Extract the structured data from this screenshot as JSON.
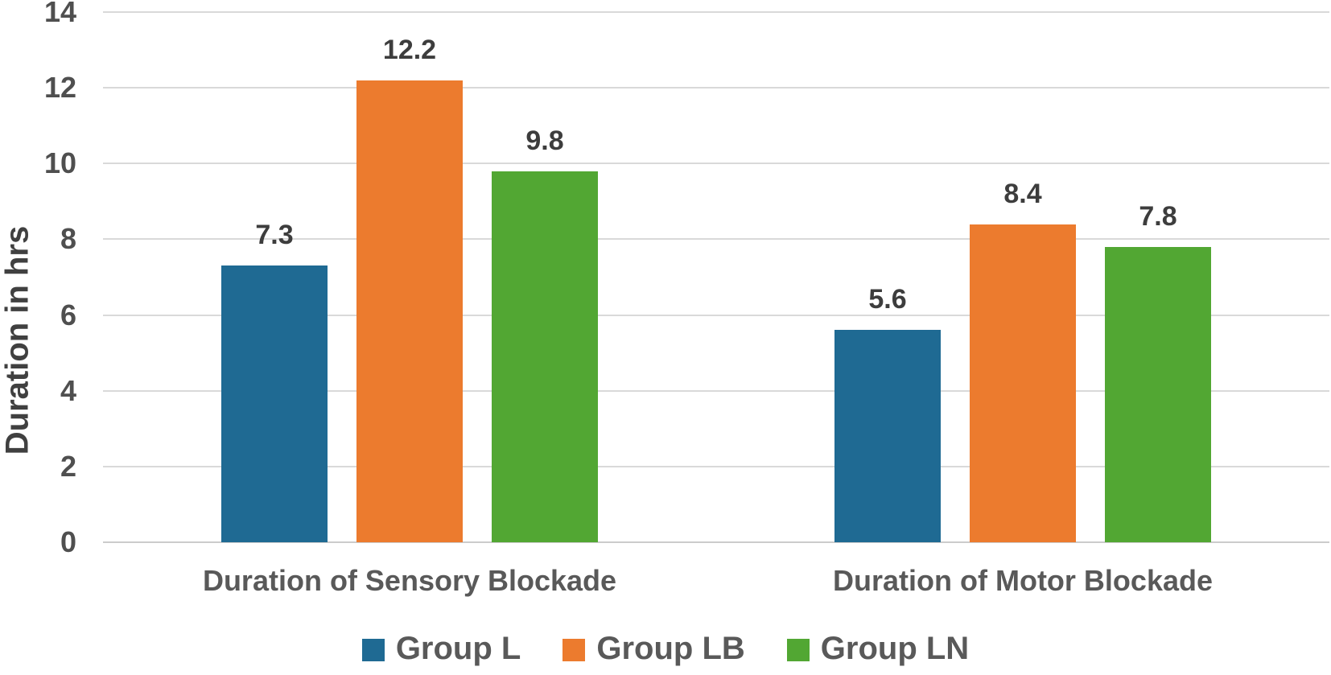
{
  "chart_data": {
    "type": "bar",
    "title": "",
    "xlabel": "",
    "ylabel": "Duration in hrs",
    "categories": [
      "Duration of Sensory Blockade",
      "Duration of Motor Blockade"
    ],
    "series": [
      {
        "name": "Group L",
        "color": "#1f6a93",
        "values": [
          7.3,
          5.6
        ],
        "labels": [
          "7.3",
          "5.6"
        ]
      },
      {
        "name": "Group LB",
        "color": "#ec7b2e",
        "values": [
          12.2,
          8.4
        ],
        "labels": [
          "12.2",
          "8.4"
        ]
      },
      {
        "name": "Group LN",
        "color": "#52a733",
        "values": [
          9.8,
          7.8
        ],
        "labels": [
          "9.8",
          "7.8"
        ]
      }
    ],
    "ylim": [
      0,
      14
    ],
    "y_ticks": [
      0,
      2,
      4,
      6,
      8,
      10,
      12,
      14
    ],
    "grid": true,
    "legend_position": "bottom",
    "colors": {
      "grid": "#d9d9d9",
      "zero_line": "#cccccc",
      "axis_text": "#4f4f4f",
      "category_text": "#595959",
      "value_label_text": "#3d3d3d",
      "legend_text": "#595959",
      "background": "#ffffff"
    }
  }
}
